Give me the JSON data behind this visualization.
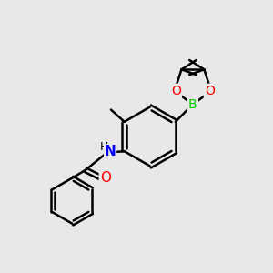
{
  "background_color": "#e8e8e8",
  "bond_color": "#000000",
  "bond_width": 1.8,
  "atom_colors": {
    "B": "#00cc00",
    "O": "#ff0000",
    "N": "#0000ff",
    "C": "#000000",
    "H": "#000000"
  },
  "font_size": 10,
  "fig_size": [
    3.0,
    3.0
  ],
  "dpi": 100
}
